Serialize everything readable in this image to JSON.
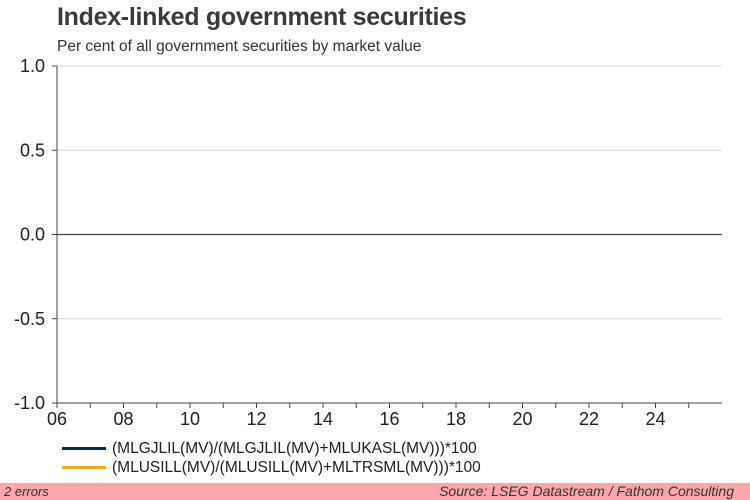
{
  "chart_data": {
    "type": "line",
    "title": "Index-linked government securities",
    "subtitle": "Per cent of all government securities by market value",
    "x_tick_labels": [
      "06",
      "08",
      "10",
      "12",
      "14",
      "16",
      "18",
      "20",
      "22",
      "24"
    ],
    "x_ticks": [
      2006,
      2008,
      2010,
      2012,
      2014,
      2016,
      2018,
      2020,
      2022,
      2024
    ],
    "xlim": [
      2006,
      2026
    ],
    "ylim": [
      -1.0,
      1.0
    ],
    "y_ticks": [
      1.0,
      0.5,
      0.0,
      -0.5,
      -1.0
    ],
    "y_tick_labels": [
      "1.0",
      "0.5",
      "0.0",
      "-0.5",
      "-1.0"
    ],
    "grid": true,
    "legend_position": "bottom-left",
    "series": [
      {
        "name": "(MLGJLIL(MV)/(MLGJLIL(MV)+MLUKASL(MV)))*100",
        "color": "#0d2a4a",
        "values": []
      },
      {
        "name": "(MLUSILL(MV)/(MLUSILL(MV)+MLTRSML(MV)))*100",
        "color": "#f5a623",
        "values": []
      }
    ]
  },
  "footer": {
    "errors": "2 errors",
    "source": "Source: LSEG Datastream / Fathom Consulting",
    "background": "#ffa5ac"
  }
}
